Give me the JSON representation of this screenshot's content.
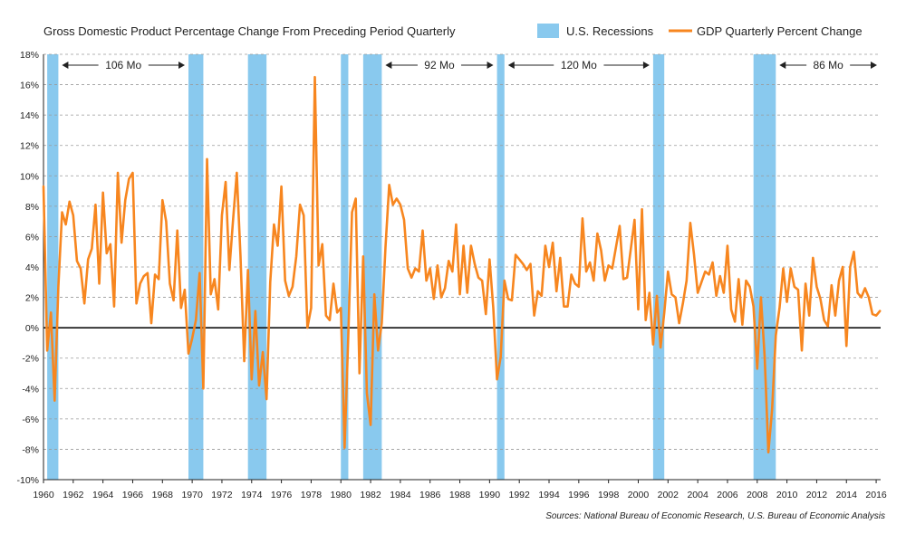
{
  "chart_data": {
    "type": "line",
    "title": "Gross Domestic Product Percentage Change From Preceding Period Quarterly",
    "xlabel": "",
    "ylabel": "",
    "xlim": [
      1960,
      2016.3
    ],
    "ylim": [
      -10,
      18
    ],
    "y_ticks": [
      -10,
      -8,
      -6,
      -4,
      -2,
      0,
      2,
      4,
      6,
      8,
      10,
      12,
      14,
      16,
      18
    ],
    "y_tick_suffix": "%",
    "x_ticks": [
      1960,
      1962,
      1964,
      1966,
      1968,
      1970,
      1972,
      1974,
      1976,
      1978,
      1980,
      1982,
      1984,
      1986,
      1988,
      1990,
      1992,
      1994,
      1996,
      1998,
      2000,
      2002,
      2004,
      2006,
      2008,
      2010,
      2012,
      2014,
      2016
    ],
    "grid": "horizontal dashed",
    "legend": {
      "position": "top-right",
      "items": [
        {
          "label": "U.S. Recessions",
          "kind": "band",
          "color": "#89c9ee"
        },
        {
          "label": "GDP Quarterly Percent Change",
          "kind": "line",
          "color": "#f7861f"
        }
      ]
    },
    "recessions": [
      {
        "start": 1960.25,
        "end": 1961.0
      },
      {
        "start": 1969.75,
        "end": 1970.75
      },
      {
        "start": 1973.75,
        "end": 1975.0
      },
      {
        "start": 1980.0,
        "end": 1980.5
      },
      {
        "start": 1981.5,
        "end": 1982.75
      },
      {
        "start": 1990.5,
        "end": 1991.0
      },
      {
        "start": 2001.0,
        "end": 2001.75
      },
      {
        "start": 2007.75,
        "end": 2009.25
      }
    ],
    "expansion_spans": [
      {
        "label": "106 Mo",
        "start": 1961.0,
        "end": 1969.75
      },
      {
        "label": "92 Mo",
        "start": 1982.75,
        "end": 1990.5
      },
      {
        "label": "120 Mo",
        "start": 1991.0,
        "end": 2001.0
      },
      {
        "label": "86 Mo",
        "start": 2009.25,
        "end": 2016.3
      }
    ],
    "series": [
      {
        "name": "GDP Quarterly Percent Change",
        "color": "#f7861f",
        "x_start": 1960.0,
        "x_step": 0.25,
        "values": [
          9.3,
          -1.5,
          1.0,
          -4.8,
          2.7,
          7.6,
          6.8,
          8.3,
          7.4,
          4.4,
          3.9,
          1.6,
          4.5,
          5.2,
          8.1,
          2.9,
          8.9,
          4.9,
          5.5,
          1.4,
          10.2,
          5.6,
          8.4,
          9.8,
          10.2,
          1.6,
          2.9,
          3.4,
          3.6,
          0.3,
          3.5,
          3.2,
          8.4,
          7.0,
          2.9,
          1.8,
          6.4,
          1.3,
          2.5,
          -1.7,
          -0.7,
          0.5,
          3.6,
          -4.0,
          11.1,
          2.2,
          3.2,
          1.2,
          7.4,
          9.6,
          3.8,
          7.1,
          10.2,
          4.7,
          -2.2,
          3.8,
          -3.4,
          1.1,
          -3.8,
          -1.6,
          -4.7,
          3.0,
          6.8,
          5.4,
          9.3,
          3.1,
          2.1,
          2.7,
          4.7,
          8.1,
          7.4,
          0.0,
          1.3,
          16.5,
          4.1,
          5.5,
          0.8,
          0.5,
          2.9,
          1.0,
          1.3,
          -7.9,
          -0.5,
          7.6,
          8.5,
          -3.0,
          4.7,
          -4.3,
          -6.4,
          2.2,
          -1.5,
          0.3,
          5.3,
          9.4,
          8.1,
          8.5,
          8.1,
          7.1,
          3.9,
          3.3,
          3.9,
          3.7,
          6.4,
          3.1,
          3.9,
          1.9,
          4.1,
          2.0,
          2.6,
          4.4,
          3.7,
          6.8,
          2.2,
          5.4,
          2.3,
          5.4,
          4.2,
          3.3,
          3.1,
          0.9,
          4.5,
          1.3,
          -3.4,
          -1.9,
          3.1,
          1.9,
          1.8,
          4.8,
          4.5,
          4.2,
          3.8,
          4.2,
          0.8,
          2.4,
          2.1,
          5.4,
          4.0,
          5.6,
          2.4,
          4.6,
          1.4,
          1.4,
          3.5,
          2.9,
          2.7,
          7.2,
          3.7,
          4.3,
          3.1,
          6.2,
          5.1,
          3.1,
          4.1,
          3.9,
          5.3,
          6.7,
          3.2,
          3.3,
          5.2,
          7.1,
          1.2,
          7.8,
          0.5,
          2.3,
          -1.1,
          2.1,
          -1.3,
          1.0,
          3.7,
          2.2,
          2.0,
          0.3,
          1.6,
          3.1,
          6.9,
          4.8,
          2.3,
          3.0,
          3.7,
          3.5,
          4.3,
          2.1,
          3.4,
          2.3,
          5.4,
          1.2,
          0.4,
          3.2,
          0.2,
          3.1,
          2.7,
          1.4,
          -2.7,
          2.0,
          -1.9,
          -8.2,
          -5.4,
          -0.5,
          1.3,
          3.9,
          1.7,
          3.9,
          2.7,
          2.5,
          -1.5,
          2.9,
          0.8,
          4.6,
          2.7,
          1.9,
          0.5,
          0.1,
          2.8,
          0.8,
          3.1,
          4.0,
          -1.2,
          4.0,
          5.0,
          2.3,
          2.0,
          2.6,
          2.0,
          0.9,
          0.8,
          1.1
        ]
      }
    ],
    "source": "Sources: National Bureau of Economic Research, U.S. Bureau of Economic Analysis"
  }
}
